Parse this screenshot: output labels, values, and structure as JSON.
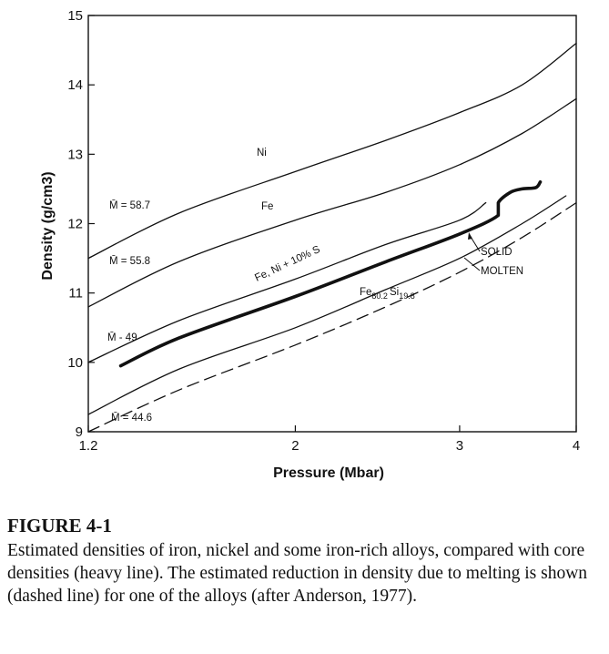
{
  "chart_data": {
    "type": "line",
    "title": "",
    "xlabel": "Pressure (Mbar)",
    "ylabel": "Density (g/cm3)",
    "xscale": "log",
    "xlim": [
      1.2,
      4.0
    ],
    "ylim": [
      9,
      15
    ],
    "xticks": [
      "1.2",
      "2",
      "3",
      "4"
    ],
    "yticks": [
      "9",
      "10",
      "11",
      "12",
      "13",
      "14",
      "15"
    ],
    "grid": false,
    "series": [
      {
        "name": "Ni",
        "style": "solid-thin",
        "points": [
          [
            1.2,
            11.5
          ],
          [
            1.5,
            12.15
          ],
          [
            2,
            12.75
          ],
          [
            2.5,
            13.2
          ],
          [
            3,
            13.6
          ],
          [
            3.5,
            14.0
          ],
          [
            4,
            14.6
          ]
        ]
      },
      {
        "name": "Fe",
        "style": "solid-thin",
        "points": [
          [
            1.2,
            10.8
          ],
          [
            1.5,
            11.45
          ],
          [
            2,
            12.05
          ],
          [
            2.5,
            12.45
          ],
          [
            3,
            12.85
          ],
          [
            3.5,
            13.3
          ],
          [
            4,
            13.8
          ]
        ]
      },
      {
        "name": "Fe, Ni + 10% S",
        "style": "solid-thin",
        "points": [
          [
            1.2,
            10.0
          ],
          [
            1.5,
            10.6
          ],
          [
            2,
            11.2
          ],
          [
            2.5,
            11.7
          ],
          [
            3,
            12.05
          ],
          [
            3.2,
            12.3
          ]
        ]
      },
      {
        "name": "Fe80.2 Si19.8",
        "style": "solid-thin",
        "points": [
          [
            1.2,
            9.25
          ],
          [
            1.5,
            9.9
          ],
          [
            2,
            10.5
          ],
          [
            2.5,
            11.05
          ],
          [
            3,
            11.5
          ],
          [
            3.5,
            12.0
          ],
          [
            3.9,
            12.4
          ]
        ]
      },
      {
        "name": "MOLTEN",
        "style": "dashed",
        "points": [
          [
            1.2,
            9.0
          ],
          [
            1.5,
            9.6
          ],
          [
            2,
            10.25
          ],
          [
            2.5,
            10.8
          ],
          [
            3,
            11.3
          ],
          [
            3.5,
            11.8
          ],
          [
            4,
            12.3
          ]
        ]
      },
      {
        "name": "core",
        "style": "heavy",
        "points": [
          [
            1.3,
            9.95
          ],
          [
            1.5,
            10.35
          ],
          [
            2,
            10.95
          ],
          [
            2.5,
            11.45
          ],
          [
            3,
            11.85
          ],
          [
            3.3,
            12.12
          ],
          [
            3.3,
            12.3
          ],
          [
            3.4,
            12.45
          ],
          [
            3.5,
            12.5
          ],
          [
            3.62,
            12.52
          ],
          [
            3.66,
            12.6
          ]
        ]
      }
    ],
    "labels": {
      "ni": "Ni",
      "fe": "Fe",
      "fe_ni_s": "Fe, Ni + 10% S",
      "fesi_base": "Fe",
      "fesi_sub1": "80.2",
      "fesi_si": "Si",
      "fesi_sub2": "19.8",
      "solid": "SOLID",
      "molten": "MOLTEN",
      "m1": "M̄ = 58.7",
      "m2": "M̄ = 55.8",
      "m3": "M̄ - 49",
      "m4": "M̄ = 44.6"
    }
  },
  "caption": {
    "title": "FIGURE 4-1",
    "text": "Estimated densities of iron, nickel and some iron-rich alloys, compared with core densities (heavy line). The estimated reduction in density due to melting is shown (dashed line) for one of the alloys (after Anderson, 1977)."
  }
}
